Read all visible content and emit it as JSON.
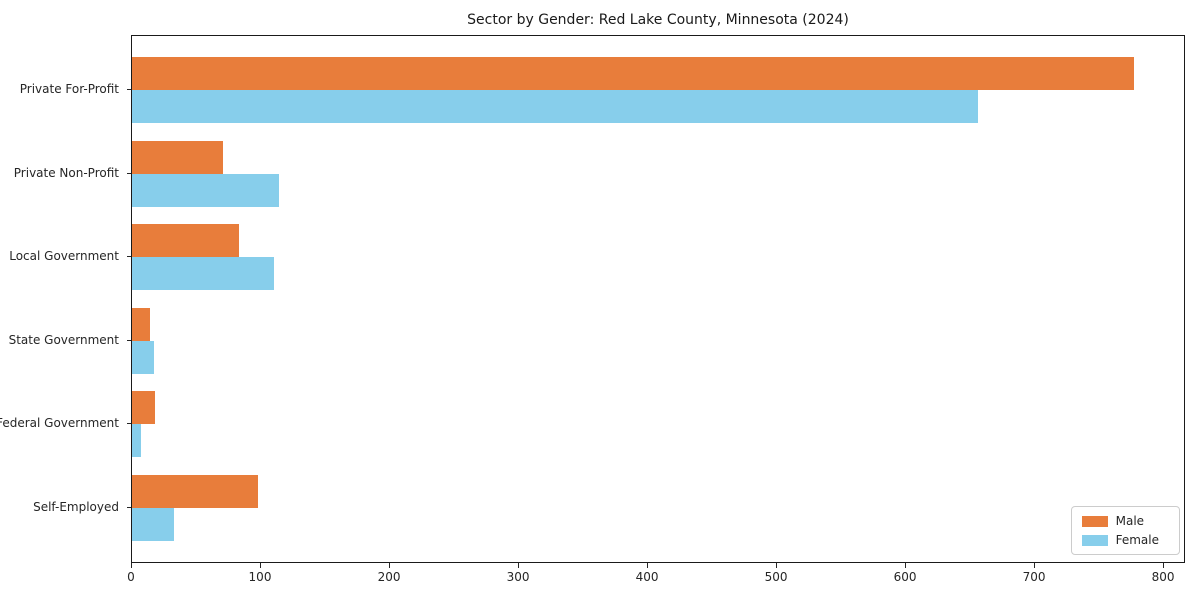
{
  "chart_data": {
    "type": "bar",
    "orientation": "horizontal",
    "title": "Sector by Gender: Red Lake County, Minnesota (2024)",
    "categories": [
      "Private For-Profit",
      "Private Non-Profit",
      "Local Government",
      "State Government",
      "Federal Government",
      "Self-Employed"
    ],
    "series": [
      {
        "name": "Male",
        "color": "#e87d3b",
        "values": [
          778,
          71,
          83,
          14,
          18,
          98
        ]
      },
      {
        "name": "Female",
        "color": "#87ceeb",
        "values": [
          657,
          114,
          110,
          17,
          7,
          33
        ]
      }
    ],
    "xlabel": "",
    "ylabel": "",
    "xlim": [
      0,
      817
    ],
    "xticks": [
      0,
      100,
      200,
      300,
      400,
      500,
      600,
      700,
      800
    ],
    "grid": false,
    "legend_position": "lower right",
    "axis_color": "#1a1a1a"
  }
}
